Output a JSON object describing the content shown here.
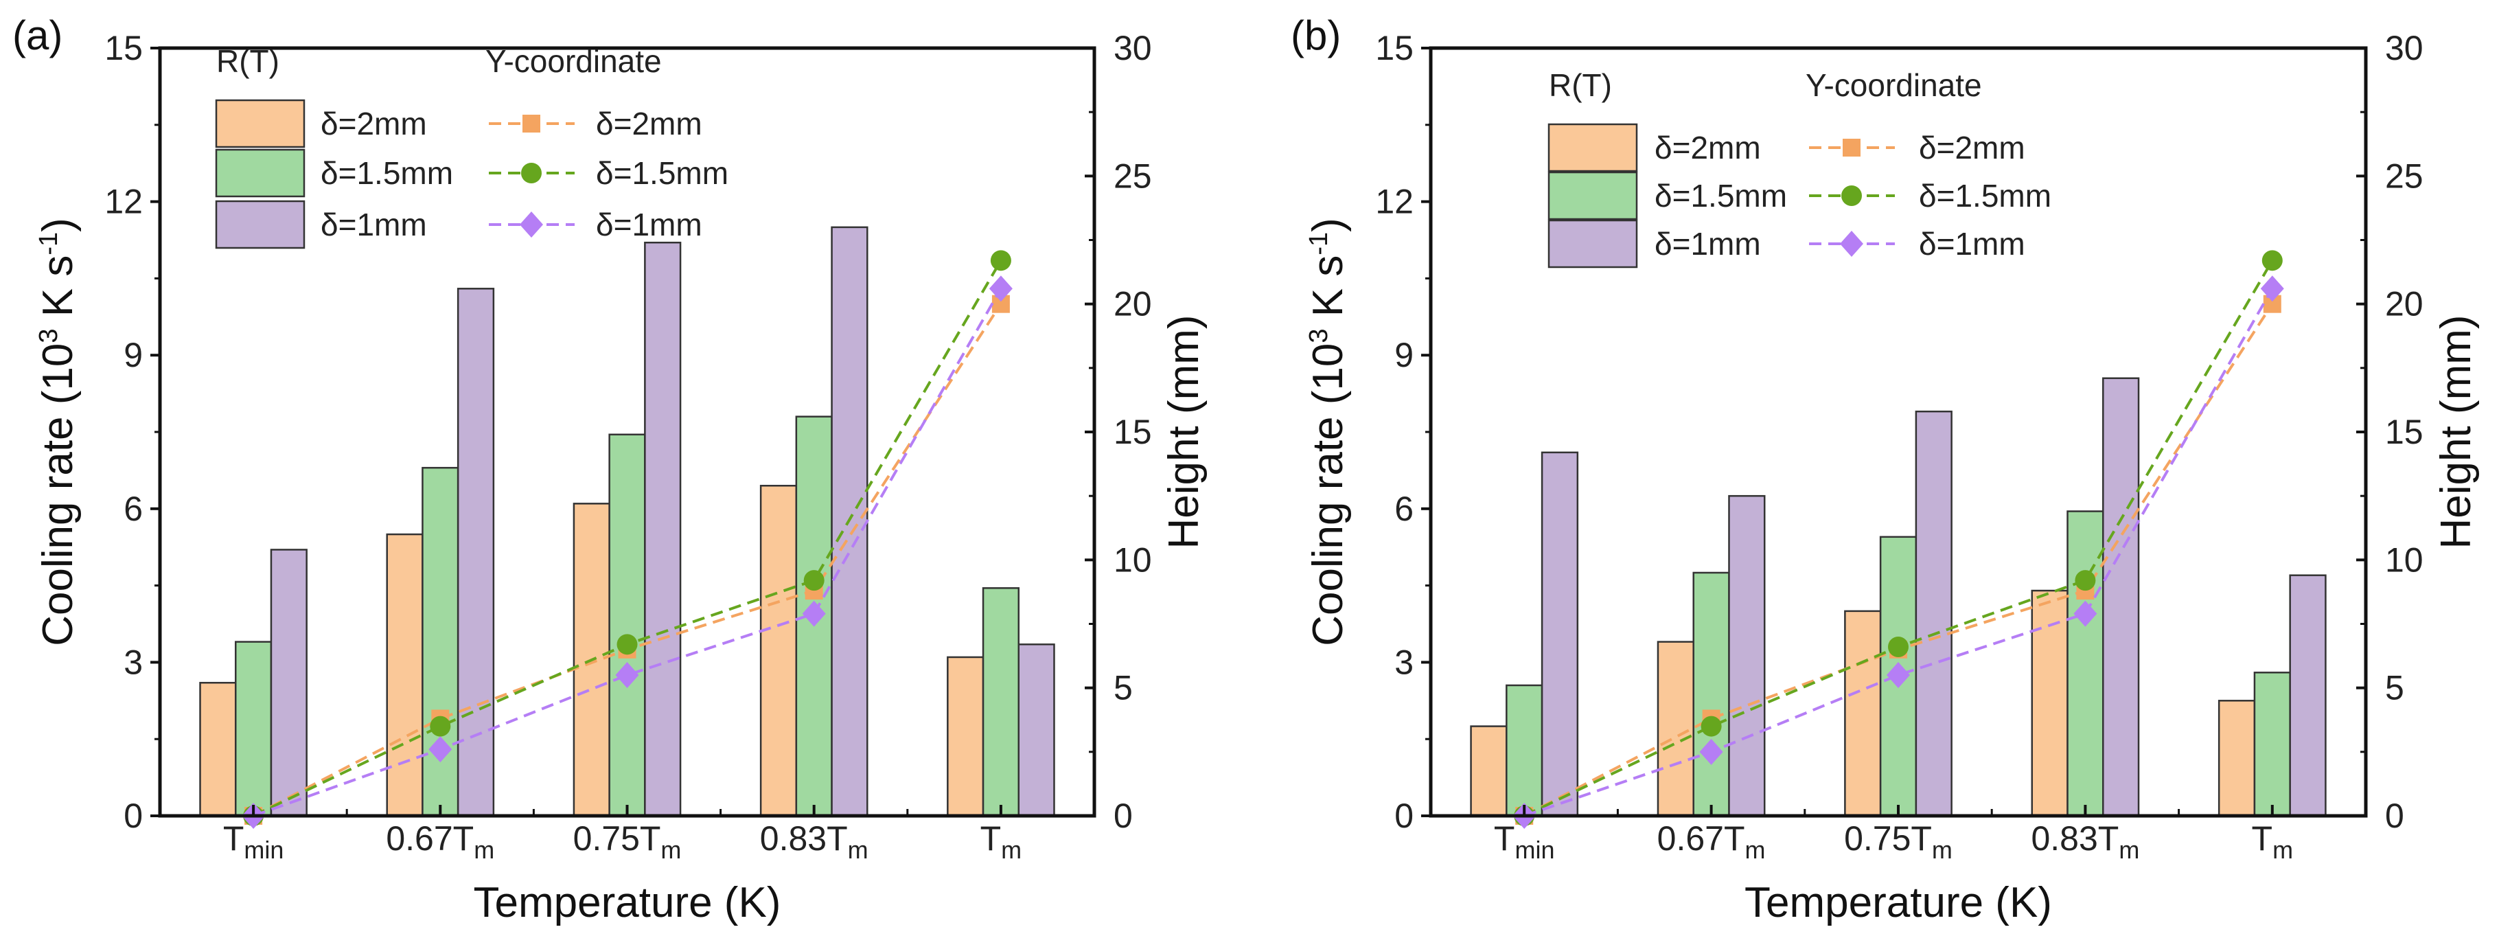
{
  "colors": {
    "bar": [
      "#fac898",
      "#a0d9a0",
      "#c3b1d6"
    ],
    "line": [
      "#f4a460",
      "#66a61e",
      "#b57ef5"
    ],
    "axis": "#111111"
  },
  "chart_data": [
    {
      "type": "bar",
      "panel_label": "(a)",
      "categories": [
        {
          "main": "T",
          "sub": "min"
        },
        {
          "main": "0.67T",
          "sub": "m"
        },
        {
          "main": "0.75T",
          "sub": "m"
        },
        {
          "main": "0.83T",
          "sub": "m"
        },
        {
          "main": "T",
          "sub": "m"
        }
      ],
      "xlabel": "Temperature (K)",
      "ylabel_parts": [
        "Cooling rate (10",
        "3",
        " K s",
        "-1",
        ")"
      ],
      "y2label": "Height (mm)",
      "ylim": [
        0,
        15
      ],
      "yticks": [
        0,
        3,
        6,
        9,
        12,
        15
      ],
      "y2lim": [
        0,
        30
      ],
      "y2ticks": [
        0,
        5,
        10,
        15,
        20,
        25,
        30
      ],
      "legend_bar_title": "R(T)",
      "legend_line_title": "Y-coordinate",
      "bar_series": [
        {
          "name": "δ=2mm",
          "values": [
            2.6,
            5.5,
            6.1,
            6.45,
            3.1
          ]
        },
        {
          "name": "δ=1.5mm",
          "values": [
            3.4,
            6.8,
            7.45,
            7.8,
            4.45
          ]
        },
        {
          "name": "δ=1mm",
          "values": [
            5.2,
            10.3,
            11.2,
            11.5,
            3.35
          ]
        }
      ],
      "line_series": [
        {
          "name": "δ=2mm",
          "marker": "square",
          "values": [
            0,
            3.8,
            6.5,
            8.8,
            20.0
          ]
        },
        {
          "name": "δ=1.5mm",
          "marker": "circle",
          "values": [
            0,
            3.5,
            6.7,
            9.2,
            21.7
          ]
        },
        {
          "name": "δ=1mm",
          "marker": "diamond",
          "values": [
            0,
            2.6,
            5.5,
            7.9,
            20.6
          ]
        }
      ]
    },
    {
      "type": "bar",
      "panel_label": "(b)",
      "categories": [
        {
          "main": "T",
          "sub": "min"
        },
        {
          "main": "0.67T",
          "sub": "m"
        },
        {
          "main": "0.75T",
          "sub": "m"
        },
        {
          "main": "0.83T",
          "sub": "m"
        },
        {
          "main": "T",
          "sub": "m"
        }
      ],
      "xlabel": "Temperature (K)",
      "ylabel_parts": [
        "Cooling rate (10",
        "3",
        " K s",
        "-1",
        ")"
      ],
      "y2label": "Height (mm)",
      "ylim": [
        0,
        15
      ],
      "yticks": [
        0,
        3,
        6,
        9,
        12,
        15
      ],
      "y2lim": [
        0,
        30
      ],
      "y2ticks": [
        0,
        5,
        10,
        15,
        20,
        25,
        30
      ],
      "legend_bar_title": "R(T)",
      "legend_line_title": "Y-coordinate",
      "bar_series": [
        {
          "name": "δ=2mm",
          "values": [
            1.75,
            3.4,
            4.0,
            4.4,
            2.25
          ]
        },
        {
          "name": "δ=1.5mm",
          "values": [
            2.55,
            4.75,
            5.45,
            5.95,
            2.8
          ]
        },
        {
          "name": "δ=1mm",
          "values": [
            7.1,
            6.25,
            7.9,
            8.55,
            4.7
          ]
        }
      ],
      "line_series": [
        {
          "name": "δ=2mm",
          "marker": "square",
          "values": [
            0,
            3.8,
            6.5,
            8.8,
            20.0
          ]
        },
        {
          "name": "δ=1.5mm",
          "marker": "circle",
          "values": [
            0,
            3.5,
            6.6,
            9.2,
            21.7
          ]
        },
        {
          "name": "δ=1mm",
          "marker": "diamond",
          "values": [
            0,
            2.5,
            5.5,
            7.9,
            20.6
          ]
        }
      ]
    }
  ]
}
